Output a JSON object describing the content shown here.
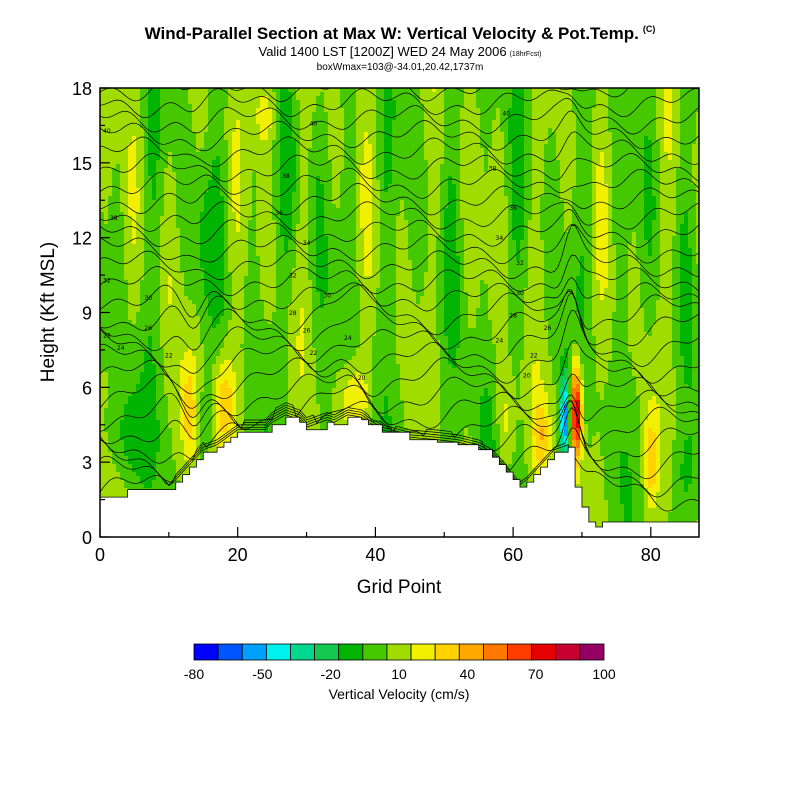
{
  "chart_data": {
    "type": "heatmap",
    "title": "Wind-Parallel Section at Max W: Vertical Velocity & Pot.Temp.",
    "copyright_mark": "(C)",
    "subtitle": "Valid 1400 LST [1200Z] WED 24 May 2006",
    "forecast_note": "(18hrFcst)",
    "subtitle2": "boxWmax=103@-34.01,20.42,1737m",
    "xlabel": "Grid Point",
    "ylabel": "Height (Kft MSL)",
    "xlim": [
      0,
      87
    ],
    "ylim": [
      0,
      18
    ],
    "xticks": [
      0,
      20,
      40,
      60,
      80
    ],
    "yticks": [
      0,
      3,
      6,
      9,
      12,
      15,
      18
    ],
    "colorbar": {
      "title": "Vertical Velocity (cm/s)",
      "tick_labels": [
        "-80",
        "-50",
        "-20",
        "10",
        "40",
        "70",
        "100"
      ],
      "tick_values": [
        -80,
        -50,
        -20,
        10,
        40,
        70,
        100
      ],
      "colors": [
        "#0000ff",
        "#0055ff",
        "#00a0ff",
        "#00f0f0",
        "#00d890",
        "#14c850",
        "#00b400",
        "#46c800",
        "#a0dc00",
        "#f0f000",
        "#ffd200",
        "#ffa800",
        "#ff7800",
        "#ff3c00",
        "#e60000",
        "#c80032",
        "#960064"
      ]
    },
    "terrain_kft": [
      [
        0,
        1.6
      ],
      [
        4,
        1.9
      ],
      [
        10,
        1.9
      ],
      [
        11,
        2.2
      ],
      [
        12,
        2.5
      ],
      [
        13,
        2.8
      ],
      [
        14,
        3.1
      ],
      [
        15,
        3.4
      ],
      [
        17,
        3.6
      ],
      [
        18,
        3.8
      ],
      [
        19,
        4.0
      ],
      [
        20,
        4.2
      ],
      [
        24,
        4.2
      ],
      [
        25,
        4.5
      ],
      [
        27,
        4.8
      ],
      [
        29,
        4.6
      ],
      [
        30,
        4.3
      ],
      [
        33,
        4.6
      ],
      [
        34,
        4.5
      ],
      [
        36,
        4.8
      ],
      [
        38,
        4.7
      ],
      [
        39,
        4.5
      ],
      [
        41,
        4.2
      ],
      [
        45,
        3.9
      ],
      [
        49,
        3.8
      ],
      [
        52,
        3.7
      ],
      [
        55,
        3.5
      ],
      [
        57,
        3.2
      ],
      [
        58,
        2.9
      ],
      [
        59,
        2.6
      ],
      [
        60,
        2.3
      ],
      [
        61,
        2.0
      ],
      [
        62,
        2.2
      ],
      [
        63,
        2.5
      ],
      [
        64,
        2.8
      ],
      [
        65,
        3.1
      ],
      [
        66,
        3.4
      ],
      [
        68,
        3.6
      ],
      [
        69,
        2.0
      ],
      [
        70,
        1.2
      ],
      [
        71,
        0.6
      ],
      [
        72,
        0.4
      ],
      [
        73,
        0.6
      ],
      [
        86,
        0.6
      ],
      [
        87,
        0.6
      ]
    ],
    "isentrope_labels": [
      {
        "x": 1,
        "y": 16.2,
        "text": "40"
      },
      {
        "x": 31,
        "y": 16.5,
        "text": "40"
      },
      {
        "x": 59,
        "y": 16.9,
        "text": "40"
      },
      {
        "x": 27,
        "y": 14.4,
        "text": "38"
      },
      {
        "x": 57,
        "y": 14.7,
        "text": "38"
      },
      {
        "x": 2,
        "y": 12.7,
        "text": "38"
      },
      {
        "x": 26,
        "y": 12.9,
        "text": "36"
      },
      {
        "x": 60,
        "y": 13.1,
        "text": "36"
      },
      {
        "x": 30,
        "y": 11.7,
        "text": "34"
      },
      {
        "x": 58,
        "y": 11.9,
        "text": "34"
      },
      {
        "x": 28,
        "y": 10.4,
        "text": "32"
      },
      {
        "x": 61,
        "y": 10.9,
        "text": "32"
      },
      {
        "x": 1,
        "y": 10.2,
        "text": "32"
      },
      {
        "x": 7,
        "y": 9.5,
        "text": "30"
      },
      {
        "x": 33,
        "y": 9.6,
        "text": "30"
      },
      {
        "x": 61,
        "y": 9.7,
        "text": "30"
      },
      {
        "x": 28,
        "y": 8.9,
        "text": "28"
      },
      {
        "x": 60,
        "y": 8.8,
        "text": "28"
      },
      {
        "x": 1,
        "y": 8.0,
        "text": "28"
      },
      {
        "x": 7,
        "y": 8.3,
        "text": "26"
      },
      {
        "x": 30,
        "y": 8.2,
        "text": "26"
      },
      {
        "x": 65,
        "y": 8.3,
        "text": "26"
      },
      {
        "x": 36,
        "y": 7.9,
        "text": "24"
      },
      {
        "x": 58,
        "y": 7.8,
        "text": "24"
      },
      {
        "x": 3,
        "y": 7.5,
        "text": "24"
      },
      {
        "x": 10,
        "y": 7.2,
        "text": "22"
      },
      {
        "x": 31,
        "y": 7.3,
        "text": "22"
      },
      {
        "x": 63,
        "y": 7.2,
        "text": "22"
      },
      {
        "x": 38,
        "y": 6.3,
        "text": "20"
      },
      {
        "x": 62,
        "y": 6.4,
        "text": "20"
      }
    ]
  }
}
